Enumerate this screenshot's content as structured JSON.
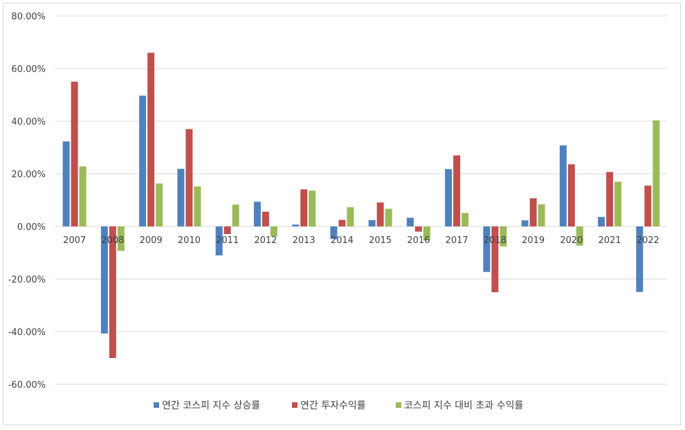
{
  "chart_data": {
    "type": "bar",
    "categories": [
      "2007",
      "2008",
      "2009",
      "2010",
      "2011",
      "2012",
      "2013",
      "2014",
      "2015",
      "2016",
      "2017",
      "2018",
      "2019",
      "2020",
      "2021",
      "2022"
    ],
    "series": [
      {
        "name": "연간 코스피 지수 상승률",
        "color": "#4f81bd",
        "values": [
          32.3,
          -40.7,
          49.7,
          21.9,
          -11.0,
          9.4,
          0.7,
          -4.8,
          2.4,
          3.3,
          21.8,
          -17.3,
          2.3,
          30.8,
          3.6,
          -24.9
        ]
      },
      {
        "name": "연간 투자수익률",
        "color": "#c0504d",
        "values": [
          55.0,
          -50.0,
          66.0,
          37.0,
          -2.9,
          5.6,
          14.1,
          2.5,
          9.1,
          -2.0,
          27.0,
          -25.0,
          10.7,
          23.6,
          20.7,
          15.5
        ]
      },
      {
        "name": "코스피 지수 대비 초과 수익률",
        "color": "#9bbb59",
        "values": [
          22.8,
          -9.3,
          16.3,
          15.2,
          8.3,
          -3.8,
          13.6,
          7.3,
          6.7,
          -5.3,
          5.1,
          -7.6,
          8.4,
          -7.3,
          17.0,
          40.3
        ]
      }
    ],
    "yticks": [
      "80.00%",
      "60.00%",
      "40.00%",
      "20.00%",
      "0.00%",
      "-20.00%",
      "-40.00%",
      "-60.00%"
    ],
    "ylim": [
      -60,
      80
    ],
    "grid": true,
    "legend_position": "bottom"
  }
}
